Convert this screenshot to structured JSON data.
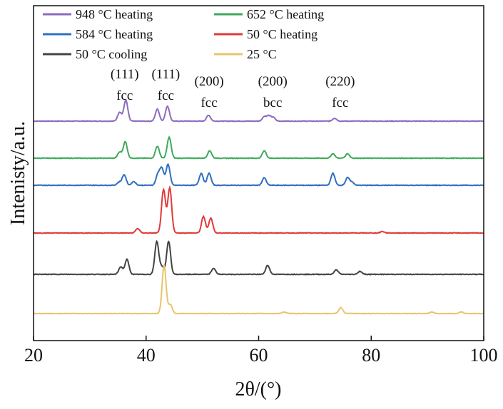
{
  "chart_data": {
    "type": "line",
    "xlabel": "2θ/(°)",
    "ylabel": "Intenisty/a.u.",
    "xlim": [
      20,
      100
    ],
    "xticks": [
      "20",
      "40",
      "60",
      "80",
      "100"
    ],
    "yticks_shown": false,
    "grid": false,
    "legend_placement": "top, two columns",
    "series": [
      {
        "name": "948 °C heating",
        "color": "#8c6bbf",
        "baseline": 0.92,
        "noise": 0.004,
        "peaks": [
          [
            35.3,
            0.06
          ],
          [
            36.4,
            0.14
          ],
          [
            42.0,
            0.08
          ],
          [
            43.8,
            0.1
          ],
          [
            51.1,
            0.04
          ],
          [
            61.0,
            0.03
          ],
          [
            61.8,
            0.035
          ],
          [
            62.6,
            0.025
          ],
          [
            73.5,
            0.02
          ]
        ]
      },
      {
        "name": "652 °C heating",
        "color": "#3daa5c",
        "baseline": 0.94,
        "noise": 0.004,
        "peaks": [
          [
            35.3,
            0.04
          ],
          [
            36.3,
            0.11
          ],
          [
            42.0,
            0.08
          ],
          [
            44.1,
            0.14
          ],
          [
            51.3,
            0.05
          ],
          [
            61.0,
            0.05
          ],
          [
            73.2,
            0.03
          ],
          [
            75.8,
            0.03
          ]
        ]
      },
      {
        "name": "584 °C heating",
        "color": "#2f6fc0",
        "baseline": 0.72,
        "noise": 0.004,
        "peaks": [
          [
            35.2,
            0.02
          ],
          [
            36.1,
            0.07
          ],
          [
            37.8,
            0.025
          ],
          [
            42.1,
            0.07
          ],
          [
            42.8,
            0.11
          ],
          [
            43.9,
            0.14
          ],
          [
            49.8,
            0.08
          ],
          [
            51.2,
            0.08
          ],
          [
            61.0,
            0.05
          ],
          [
            73.2,
            0.08
          ],
          [
            75.8,
            0.05
          ],
          [
            76.6,
            0.02
          ]
        ]
      },
      {
        "name": "50 °C heating",
        "color": "#e03a3a",
        "baseline": 0.62,
        "noise": 0.004,
        "peaks": [
          [
            38.5,
            0.03
          ],
          [
            43.1,
            0.29
          ],
          [
            44.2,
            0.3
          ],
          [
            50.2,
            0.11
          ],
          [
            51.5,
            0.1
          ],
          [
            82.0,
            0.01
          ]
        ]
      },
      {
        "name": "50 °C  cooling",
        "color": "#444444",
        "baseline": 0.68,
        "noise": 0.004,
        "peaks": [
          [
            35.5,
            0.05
          ],
          [
            36.6,
            0.1
          ],
          [
            41.9,
            0.22
          ],
          [
            42.8,
            0.05
          ],
          [
            44.0,
            0.22
          ],
          [
            52.0,
            0.04
          ],
          [
            61.6,
            0.06
          ],
          [
            73.8,
            0.03
          ],
          [
            78.0,
            0.02
          ]
        ]
      },
      {
        "name": "25 °C",
        "color": "#e8c46b",
        "baseline": 0.72,
        "noise": 0.003,
        "peaks": [
          [
            43.2,
            0.32
          ],
          [
            44.3,
            0.06
          ],
          [
            64.5,
            0.01
          ],
          [
            74.6,
            0.04
          ],
          [
            90.8,
            0.01
          ],
          [
            96.0,
            0.01
          ]
        ]
      }
    ],
    "annotations": [
      {
        "top": "(111)",
        "bottom": "fcc",
        "x": 36.2
      },
      {
        "top": "(111)",
        "bottom": "fcc",
        "x": 43.5
      },
      {
        "top": "(200)",
        "bottom": "fcc",
        "x": 51.2
      },
      {
        "top": "(200)",
        "bottom": "bcc",
        "x": 62.5
      },
      {
        "top": "(220)",
        "bottom": "fcc",
        "x": 74.5
      }
    ]
  }
}
